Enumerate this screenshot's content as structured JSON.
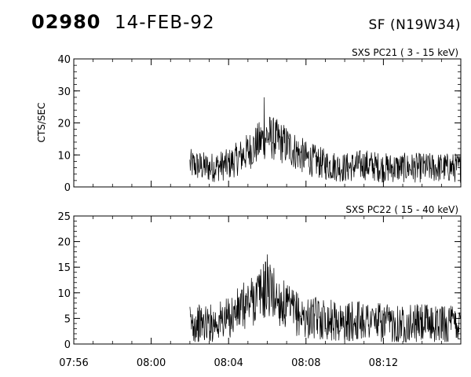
{
  "header": {
    "event_id": "02980",
    "date": "14-FEB-92",
    "location": "SF (N19W34)"
  },
  "chart_data": [
    {
      "type": "line",
      "title": "SXS PC21  (  3 - 15 keV)",
      "ylabel": "CTS/SEC",
      "xlabel": "",
      "ylim": [
        0,
        40
      ],
      "yticks": [
        "0",
        "10",
        "20",
        "30",
        "40"
      ],
      "xlim": [
        "07:56",
        "08:16"
      ],
      "xtick_labels": [
        "07:56",
        "08:00",
        "08:04",
        "08:08",
        "08:12"
      ],
      "data_start": "08:02",
      "series": [
        {
          "values_approx_minute": [
            {
              "x": "08:02",
              "y": 7
            },
            {
              "x": "08:03",
              "y": 6
            },
            {
              "x": "08:04",
              "y": 7
            },
            {
              "x": "08:05",
              "y": 11
            },
            {
              "x": "08:06",
              "y": 16
            },
            {
              "x": "08:07",
              "y": 13
            },
            {
              "x": "08:08",
              "y": 9
            },
            {
              "x": "08:09",
              "y": 7
            },
            {
              "x": "08:10",
              "y": 6
            },
            {
              "x": "08:11",
              "y": 7
            },
            {
              "x": "08:12",
              "y": 6
            },
            {
              "x": "08:13",
              "y": 6
            },
            {
              "x": "08:14",
              "y": 6
            },
            {
              "x": "08:15",
              "y": 6
            }
          ],
          "peak": {
            "x": "08:05:50",
            "y": 28
          }
        }
      ]
    },
    {
      "type": "line",
      "title": "SXS PC22  ( 15 - 40 keV)",
      "ylabel": "",
      "xlabel": "",
      "ylim": [
        0,
        25
      ],
      "yticks": [
        "0",
        "5",
        "10",
        "15",
        "20",
        "25"
      ],
      "xlim": [
        "07:56",
        "08:16"
      ],
      "xtick_labels": [
        "07:56",
        "08:00",
        "08:04",
        "08:08",
        "08:12"
      ],
      "data_start": "08:02",
      "series": [
        {
          "values_approx_minute": [
            {
              "x": "08:02",
              "y": 4
            },
            {
              "x": "08:03",
              "y": 4
            },
            {
              "x": "08:04",
              "y": 5
            },
            {
              "x": "08:05",
              "y": 8
            },
            {
              "x": "08:06",
              "y": 11
            },
            {
              "x": "08:07",
              "y": 7
            },
            {
              "x": "08:08",
              "y": 5
            },
            {
              "x": "08:09",
              "y": 5
            },
            {
              "x": "08:10",
              "y": 4
            },
            {
              "x": "08:11",
              "y": 5
            },
            {
              "x": "08:12",
              "y": 4
            },
            {
              "x": "08:13",
              "y": 4
            },
            {
              "x": "08:14",
              "y": 4
            },
            {
              "x": "08:15",
              "y": 4
            }
          ],
          "peak": {
            "x": "08:06",
            "y": 17.5
          }
        }
      ]
    }
  ]
}
